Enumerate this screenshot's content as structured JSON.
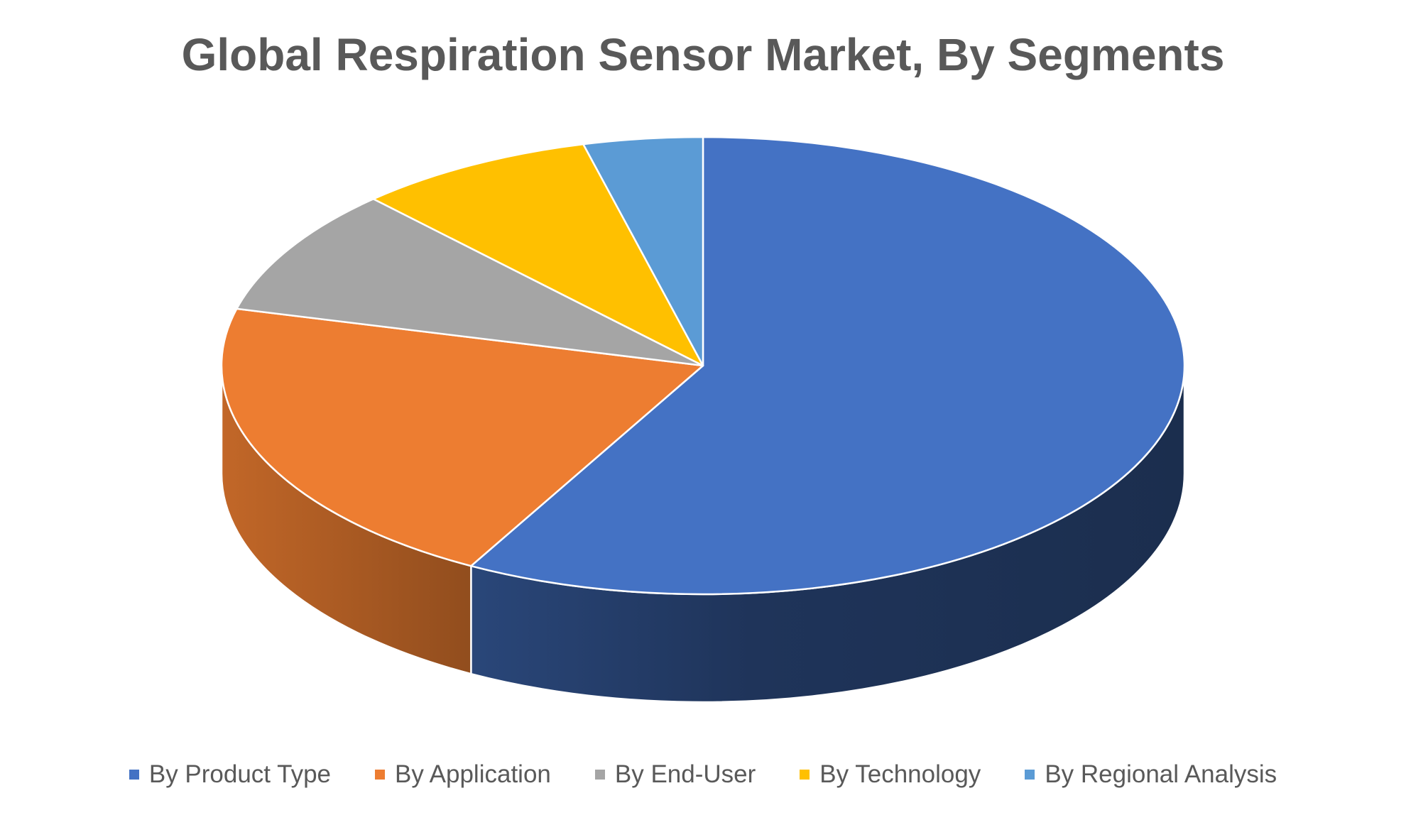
{
  "chart_data": {
    "type": "pie",
    "style": "3d",
    "title": "Global Respiration Sensor Market, By Segments",
    "legend_position": "bottom",
    "categories": [
      "By Product Type",
      "By Application",
      "By End-User",
      "By Technology",
      "By Regional Analysis"
    ],
    "values": [
      58,
      21,
      9,
      8,
      4
    ],
    "unit": "%",
    "colors": [
      "#4472C4",
      "#ED7D31",
      "#A5A5A5",
      "#FFC000",
      "#5B9BD5"
    ]
  }
}
